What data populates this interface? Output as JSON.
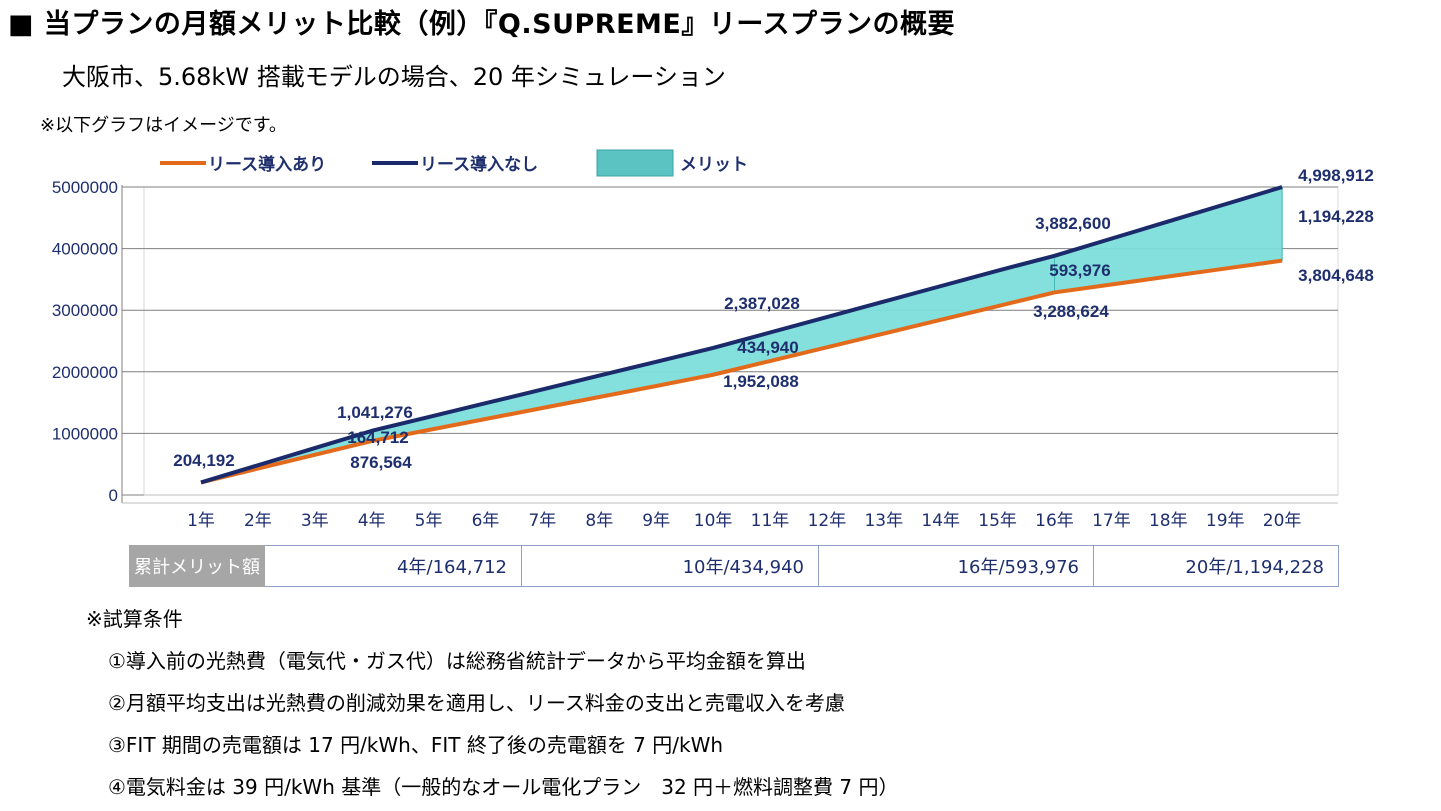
{
  "header": {
    "title": "■ 当プランの月額メリット比較（例）『Q.SUPREME』リースプランの概要",
    "subtitle": "大阪市、5.68kW 搭載モデルの場合、20 年シミュレーション",
    "note": "※以下グラフはイメージです。"
  },
  "colors": {
    "with_lease": "#e46a1b",
    "without_lease": "#1b2a6b",
    "merit_fill": "#7ddfdc",
    "merit_legend": "#5bc3c2",
    "grid": "#7f7f7f",
    "text": "#1f2f6e"
  },
  "chart_data": {
    "type": "line",
    "title": "",
    "xlabel": "",
    "ylabel": "",
    "ylim": [
      0,
      5000000
    ],
    "yticks": [
      0,
      1000000,
      2000000,
      3000000,
      4000000,
      5000000
    ],
    "ytick_labels": [
      "0",
      "1000000",
      "2000000",
      "3000000",
      "4000000",
      "5000000"
    ],
    "categories": [
      "1年",
      "2年",
      "3年",
      "4年",
      "5年",
      "6年",
      "7年",
      "8年",
      "9年",
      "10年",
      "11年",
      "12年",
      "13年",
      "14年",
      "15年",
      "16年",
      "17年",
      "18年",
      "19年",
      "20年"
    ],
    "legend": [
      "リース導入あり",
      "リース導入なし",
      "メリット"
    ],
    "series": [
      {
        "name": "リース導入あり",
        "values": [
          204192,
          428315,
          652438,
          876564,
          1055151,
          1233738,
          1412325,
          1590912,
          1769499,
          1952088,
          2174844,
          2397600,
          2620356,
          2843112,
          3065868,
          3288624,
          3417630,
          3546636,
          3675642,
          3804648
        ]
      },
      {
        "name": "リース導入なし",
        "values": [
          204192,
          483220,
          762248,
          1041276,
          1265568,
          1489860,
          1714152,
          1938444,
          2162736,
          2387028,
          2637957,
          2888886,
          3139815,
          3390744,
          3641673,
          3882600,
          4161678,
          4440756,
          4719834,
          4998912
        ]
      }
    ],
    "annotations": [
      {
        "label": "204,192",
        "year": 1,
        "series": "リース導入あり"
      },
      {
        "label": "1,041,276",
        "year": 4,
        "series": "リース導入なし"
      },
      {
        "label": "164,712",
        "year": 4,
        "series": "メリット"
      },
      {
        "label": "876,564",
        "year": 4,
        "series": "リース導入あり"
      },
      {
        "label": "2,387,028",
        "year": 10,
        "series": "リース導入なし"
      },
      {
        "label": "434,940",
        "year": 10,
        "series": "メリット"
      },
      {
        "label": "1,952,088",
        "year": 10,
        "series": "リース導入あり"
      },
      {
        "label": "3,882,600",
        "year": 16,
        "series": "リース導入なし"
      },
      {
        "label": "593,976",
        "year": 16,
        "series": "メリット"
      },
      {
        "label": "3,288,624",
        "year": 16,
        "series": "リース導入あり"
      },
      {
        "label": "4,998,912",
        "year": 20,
        "series": "リース導入なし"
      },
      {
        "label": "1,194,228",
        "year": 20,
        "series": "メリット"
      },
      {
        "label": "3,804,648",
        "year": 20,
        "series": "リース導入あり"
      }
    ]
  },
  "merit_table": {
    "header": "累計メリット額",
    "cells": [
      "4年/164,712",
      "10年/434,940",
      "16年/593,976",
      "20年/1,194,228"
    ]
  },
  "conditions": {
    "heading": "※試算条件",
    "items": [
      "①導入前の光熱費（電気代・ガス代）は総務省統計データから平均金額を算出",
      "②月額平均支出は光熱費の削減効果を適用し、リース料金の支出と売電収入を考慮",
      "③FIT 期間の売電額は 17 円/kWh、FIT 終了後の売電額を 7 円/kWh",
      "④電気料金は 39 円/kWh 基準（一般的なオール電化プラン　32 円＋燃料調整費 7 円）"
    ]
  }
}
